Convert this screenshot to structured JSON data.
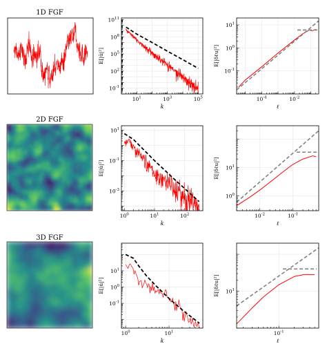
{
  "figure": {
    "rows": [
      {
        "title": "1D FGF",
        "field": "signal"
      },
      {
        "title": "2D FGF",
        "field": "image"
      },
      {
        "title": "3D FGF",
        "field": "image"
      }
    ],
    "colors": {
      "data": "#ff0000",
      "model": "#000000",
      "fit": "#808080",
      "grid": "#e6e6e6",
      "colormap": [
        "#440154",
        "#3b528b",
        "#21918c",
        "#5ec962",
        "#fde725"
      ]
    }
  },
  "chart_data": [
    {
      "panel": "row1-spectrum",
      "type": "line",
      "log_x": true,
      "log_y": true,
      "xlabel": "k",
      "ylabel": "E[|û|²]",
      "grid": true,
      "xlim": [
        1,
        200000
      ],
      "ylim": [
        0.01,
        200000000000
      ],
      "xticks": [
        "10^1",
        "10^3",
        "10^5"
      ],
      "yticks": [
        "10^-1",
        "10^2",
        "10^5",
        "10^8",
        "10^11"
      ],
      "series": [
        {
          "role": "data",
          "x": [
            2,
            5,
            10,
            30,
            100,
            300,
            1000,
            3000,
            10000,
            30000,
            100000
          ],
          "y": [
            2000000000,
            300000000,
            40000000,
            4000000,
            300000,
            30000,
            3000,
            300,
            30,
            3,
            0.3
          ]
        },
        {
          "role": "model",
          "x": [
            2,
            10,
            100,
            1000,
            10000,
            100000
          ],
          "y": [
            5000000000,
            300000000,
            10000000,
            300000,
            10000,
            300
          ]
        }
      ]
    },
    {
      "panel": "row1-structure",
      "type": "line",
      "log_x": true,
      "log_y": true,
      "xlabel": "ℓ",
      "ylabel": "E[|δℓu|²]",
      "grid": true,
      "xlim": [
        3e-06,
        0.3
      ],
      "ylim": [
        0.01,
        20
      ],
      "xticks": [
        "10^-4",
        "10^-2"
      ],
      "yticks": [
        "10^-1",
        "10^0",
        "10^1"
      ],
      "series": [
        {
          "role": "data",
          "x": [
            4e-06,
            1e-05,
            0.0001,
            0.001,
            0.01,
            0.03,
            0.08,
            0.12,
            0.2
          ],
          "y": [
            0.02,
            0.04,
            0.15,
            0.6,
            2.2,
            4,
            6,
            5.5,
            6.5
          ]
        },
        {
          "role": "fit",
          "x": [
            3e-06,
            0.3
          ],
          "y": [
            0.015,
            15
          ]
        },
        {
          "role": "level",
          "x": [
            0.015,
            0.25
          ],
          "y": [
            6,
            6
          ]
        }
      ]
    },
    {
      "panel": "row2-spectrum",
      "type": "line",
      "log_x": true,
      "log_y": true,
      "xlabel": "k",
      "ylabel": "E[|û|²]",
      "grid": true,
      "xlim": [
        0.8,
        400
      ],
      "ylim": [
        5e-05,
        20
      ],
      "xticks": [
        "10^0",
        "10^1",
        "10^2"
      ],
      "yticks": [
        "10^-3",
        "10^-1",
        "10^1"
      ],
      "series": [
        {
          "role": "data",
          "x": [
            1,
            1.5,
            2,
            3,
            5,
            10,
            20,
            50,
            100,
            200,
            300
          ],
          "y": [
            2,
            3,
            1,
            0.5,
            0.15,
            0.03,
            0.01,
            0.003,
            0.001,
            0.0005,
            0.0002
          ]
        },
        {
          "role": "model",
          "x": [
            1,
            2,
            5,
            10,
            50,
            300
          ],
          "y": [
            6,
            2.5,
            0.4,
            0.1,
            0.005,
            0.0002
          ]
        }
      ]
    },
    {
      "panel": "row2-structure",
      "type": "line",
      "log_x": true,
      "log_y": true,
      "xlabel": "ℓ",
      "ylabel": "E[|δℓu|²]",
      "grid": true,
      "xlim": [
        0.002,
        0.6
      ],
      "ylim": [
        0.3,
        300
      ],
      "xticks": [
        "10^-2",
        "10^-1"
      ],
      "yticks": [
        "10^0",
        "10^1"
      ],
      "series": [
        {
          "role": "data",
          "x": [
            0.002,
            0.005,
            0.01,
            0.02,
            0.05,
            0.1,
            0.2,
            0.4,
            0.5
          ],
          "y": [
            0.45,
            0.9,
            1.6,
            3,
            7,
            13,
            20,
            26,
            24
          ]
        },
        {
          "role": "fit",
          "x": [
            0.002,
            0.6
          ],
          "y": [
            0.6,
            200
          ]
        },
        {
          "role": "level",
          "x": [
            0.13,
            0.55
          ],
          "y": [
            35,
            35
          ]
        }
      ]
    },
    {
      "panel": "row3-spectrum",
      "type": "line",
      "log_x": true,
      "log_y": true,
      "xlabel": "k",
      "ylabel": "E[|û|²]",
      "grid": true,
      "xlim": [
        0.8,
        60
      ],
      "ylim": [
        0.003,
        500
      ],
      "xticks": [
        "10^0",
        "10^1"
      ],
      "yticks": [
        "10^-1",
        "10^0",
        "10^1"
      ],
      "series": [
        {
          "role": "data",
          "x": [
            1,
            1.5,
            2,
            3,
            5,
            8,
            12,
            20,
            30,
            50
          ],
          "y": [
            30,
            20,
            3,
            2,
            1,
            0.5,
            0.2,
            0.06,
            0.02,
            0.007
          ]
        },
        {
          "role": "model",
          "x": [
            1,
            1.5,
            2,
            3,
            5,
            10,
            20,
            50
          ],
          "y": [
            100,
            60,
            20,
            5,
            1.2,
            0.2,
            0.04,
            0.006
          ]
        }
      ]
    },
    {
      "panel": "row3-structure",
      "type": "line",
      "log_x": true,
      "log_y": true,
      "xlabel": "ℓ",
      "ylabel": "E[|δℓu|²]",
      "grid": true,
      "xlim": [
        0.015,
        0.6
      ],
      "ylim": [
        1,
        200
      ],
      "xticks": [
        "10^-1"
      ],
      "yticks": [
        "10^1"
      ],
      "series": [
        {
          "role": "data",
          "x": [
            0.015,
            0.03,
            0.05,
            0.1,
            0.2,
            0.3,
            0.5
          ],
          "y": [
            1.3,
            3.5,
            7,
            15,
            25,
            28,
            28
          ]
        },
        {
          "role": "fit",
          "x": [
            0.015,
            0.6
          ],
          "y": [
            4,
            150
          ]
        },
        {
          "role": "level",
          "x": [
            0.12,
            0.55
          ],
          "y": [
            40,
            40
          ]
        }
      ]
    }
  ]
}
